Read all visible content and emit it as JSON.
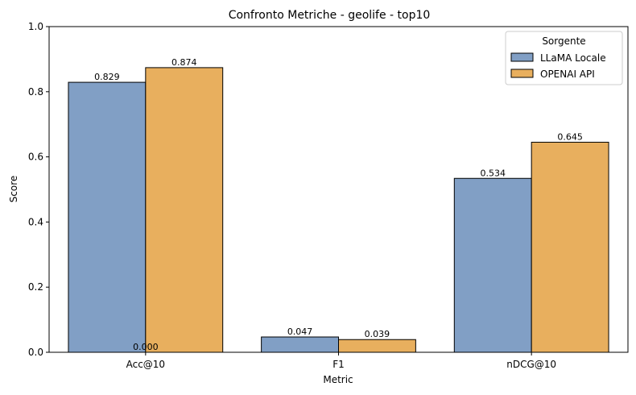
{
  "chart_data": {
    "type": "bar",
    "title": "Confronto Metriche - geolife - top10",
    "xlabel": "Metric",
    "ylabel": "Score",
    "ylim": [
      0,
      1
    ],
    "yticks": [
      "0.0",
      "0.2",
      "0.4",
      "0.6",
      "0.8",
      "1.0"
    ],
    "categories": [
      "Acc@10",
      "F1",
      "nDCG@10"
    ],
    "series": [
      {
        "name": "LLaMA Locale",
        "values": [
          0.829,
          0.047,
          0.534
        ],
        "labels": [
          "0.829",
          "0.047",
          "0.534"
        ],
        "color": "#819fc5"
      },
      {
        "name": "OPENAI API",
        "values": [
          0.874,
          0.039,
          0.645
        ],
        "labels": [
          "0.874",
          "0.039",
          "0.645"
        ],
        "color": "#e8af5e"
      }
    ],
    "extra_labels": [
      {
        "category": "Acc@10",
        "text": "0.000"
      }
    ],
    "legend": {
      "title": "Sorgente",
      "placement": "top-right"
    },
    "grid": false
  }
}
